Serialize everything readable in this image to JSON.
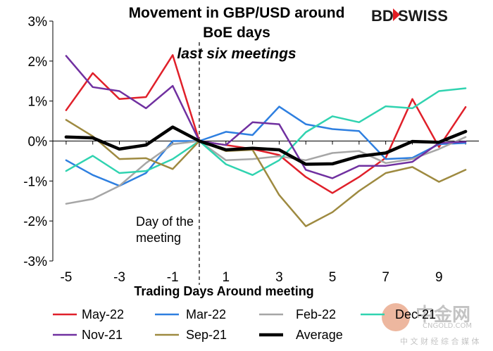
{
  "chart_data": {
    "type": "line",
    "title": "Movement in GBP/USD around",
    "title_line2": "BoE days",
    "subtitle": "last six meetings",
    "xlabel": "Trading Days Around meeting",
    "ylabel": "",
    "x": [
      -5,
      -4,
      -3,
      -2,
      -1,
      0,
      1,
      2,
      3,
      4,
      5,
      6,
      7,
      8,
      9,
      10
    ],
    "x_tick_labels": [
      "-5",
      "-3",
      "-1",
      "1",
      "3",
      "5",
      "7",
      "9"
    ],
    "x_tick_values": [
      -5,
      -3,
      -1,
      1,
      3,
      5,
      7,
      9
    ],
    "xlim": [
      -5.5,
      10.5
    ],
    "ylim": [
      -3,
      3
    ],
    "y_ticks": [
      -3,
      -2,
      -1,
      0,
      1,
      2,
      3
    ],
    "y_tick_labels": [
      "-3%",
      "-2%",
      "-1%",
      "0%",
      "1%",
      "2%",
      "3%"
    ],
    "grid": false,
    "legend_position": "bottom",
    "annotation": {
      "line1": "Day of the",
      "line2": "meeting",
      "x": 0
    },
    "series": [
      {
        "name": "May-22",
        "color": "#e0202a",
        "width": 2.5,
        "values": [
          0.77,
          1.7,
          1.05,
          1.1,
          2.15,
          0.0,
          -0.1,
          -0.2,
          -0.35,
          -0.9,
          -1.3,
          -0.9,
          -0.42,
          1.05,
          -0.15,
          0.85
        ]
      },
      {
        "name": "Mar-22",
        "color": "#2e7fe0",
        "width": 2.5,
        "values": [
          -0.48,
          -0.85,
          -1.12,
          -0.8,
          0.0,
          0.0,
          0.23,
          0.15,
          0.86,
          0.42,
          0.3,
          0.25,
          -0.45,
          -0.42,
          -0.08,
          -0.05
        ]
      },
      {
        "name": "Feb-22",
        "color": "#a6a6a6",
        "width": 2.5,
        "values": [
          -1.57,
          -1.45,
          -1.12,
          -0.55,
          -0.08,
          0.0,
          -0.48,
          -0.45,
          -0.38,
          -0.48,
          -0.3,
          -0.25,
          -0.55,
          -0.45,
          -0.2,
          0.1
        ]
      },
      {
        "name": "Dec-21",
        "color": "#30d3b0",
        "width": 2.5,
        "values": [
          -0.75,
          -0.37,
          -0.8,
          -0.75,
          -0.45,
          0.0,
          -0.58,
          -0.85,
          -0.48,
          0.22,
          0.62,
          0.47,
          0.87,
          0.82,
          1.25,
          1.32
        ]
      },
      {
        "name": "Nov-21",
        "color": "#7030a0",
        "width": 2.5,
        "values": [
          2.13,
          1.35,
          1.25,
          0.82,
          1.38,
          0.0,
          -0.1,
          0.47,
          0.42,
          -0.72,
          -0.93,
          -0.62,
          -0.62,
          -0.52,
          -0.05,
          -0.02
        ]
      },
      {
        "name": "Sep-21",
        "color": "#9e8a40",
        "width": 2.5,
        "values": [
          0.53,
          0.12,
          -0.45,
          -0.43,
          -0.7,
          0.0,
          -0.25,
          -0.22,
          -1.35,
          -2.13,
          -1.78,
          -1.25,
          -0.8,
          -0.65,
          -1.02,
          -0.72
        ]
      },
      {
        "name": "Average",
        "color": "#000000",
        "width": 4.5,
        "values": [
          0.1,
          0.08,
          -0.2,
          -0.1,
          0.35,
          0.0,
          -0.22,
          -0.18,
          -0.22,
          -0.58,
          -0.57,
          -0.38,
          -0.3,
          -0.01,
          -0.03,
          0.24
        ]
      }
    ]
  },
  "branding": {
    "logo_text": "BDSWISS",
    "logo_bd": "BD",
    "logo_swiss": "SWISS",
    "watermark_main": "中金网",
    "watermark_url": "CNGOLD.COM",
    "watermark_tag": "中 文 财 经 综 合 媒 体"
  }
}
